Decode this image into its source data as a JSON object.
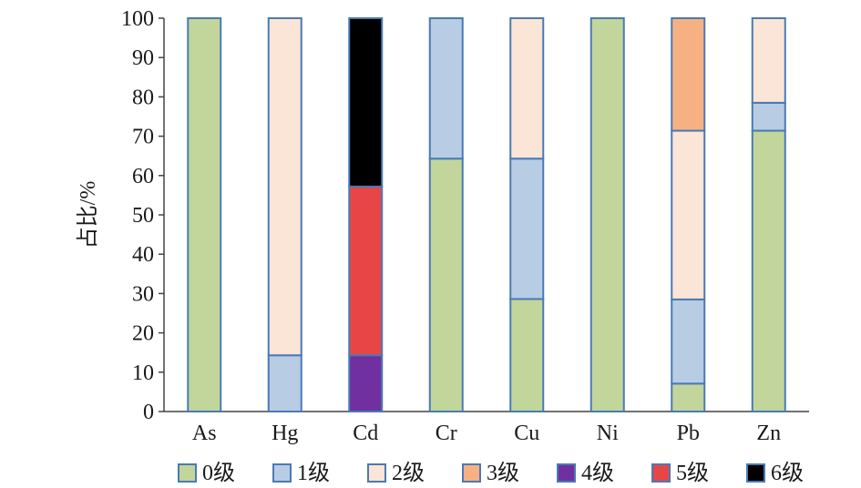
{
  "chart_data": {
    "type": "bar",
    "stacked": true,
    "title": "",
    "xlabel": "",
    "ylabel": "占比/%",
    "ylim": [
      0,
      100
    ],
    "yticks": [
      0,
      10,
      20,
      30,
      40,
      50,
      60,
      70,
      80,
      90,
      100
    ],
    "grid": false,
    "legend_position": "bottom",
    "categories": [
      "As",
      "Hg",
      "Cd",
      "Cr",
      "Cu",
      "Ni",
      "Pb",
      "Zn"
    ],
    "series": [
      {
        "name": "0级",
        "color": "#c2d69b",
        "values": [
          100,
          0,
          0,
          64.3,
          28.6,
          100,
          7.1,
          71.4
        ]
      },
      {
        "name": "1级",
        "color": "#b8cce4",
        "values": [
          0,
          14.3,
          0,
          35.7,
          35.7,
          0,
          21.4,
          7.1
        ]
      },
      {
        "name": "2级",
        "color": "#fbe5d6",
        "values": [
          0,
          85.7,
          0,
          0,
          35.7,
          0,
          42.9,
          21.5
        ]
      },
      {
        "name": "3级",
        "color": "#f6b183",
        "values": [
          0,
          0,
          0,
          0,
          0,
          0,
          28.6,
          0
        ]
      },
      {
        "name": "4级",
        "color": "#7030a0",
        "values": [
          0,
          0,
          14.3,
          0,
          0,
          0,
          0,
          0
        ]
      },
      {
        "name": "5级",
        "color": "#e84646",
        "values": [
          0,
          0,
          42.9,
          0,
          0,
          0,
          0,
          0
        ]
      },
      {
        "name": "6级",
        "color": "#000000",
        "values": [
          0,
          0,
          42.8,
          0,
          0,
          0,
          0,
          0
        ]
      }
    ],
    "bar_border_color": "#4a7ab5",
    "axis_color": "#444444"
  }
}
